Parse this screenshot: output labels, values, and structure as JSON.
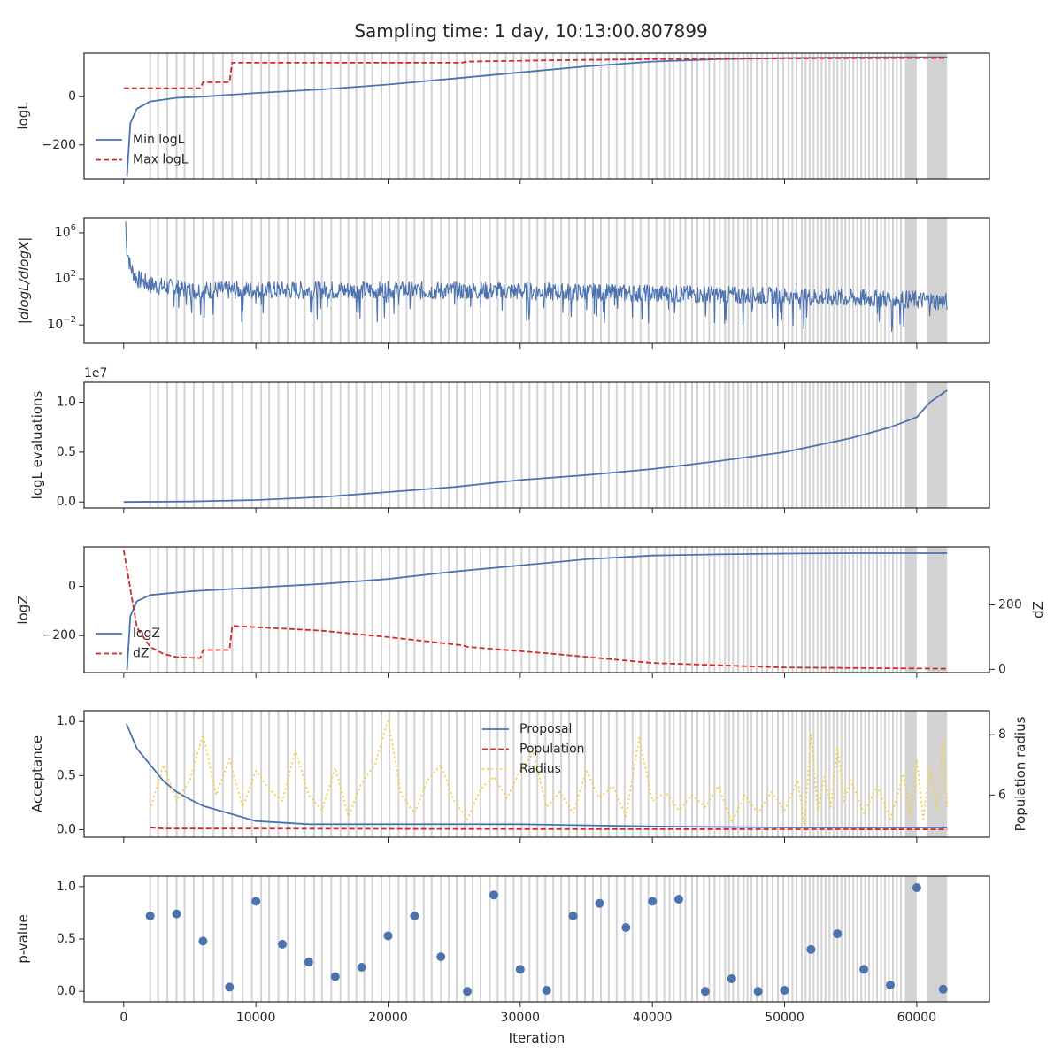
{
  "figure": {
    "title": "Sampling time: 1 day, 10:13:00.807899"
  },
  "colors": {
    "blue": "#4c72b0",
    "red": "#d62728",
    "yellow": "#f5d040",
    "gray_band": "#d3d3d3",
    "axis": "#262626"
  },
  "chart_data": [
    {
      "id": "logL",
      "type": "line",
      "ylabel": "logL",
      "ylim": [
        -340,
        180
      ],
      "yticks": [
        {
          "v": 0,
          "label": "0"
        },
        {
          "v": -200,
          "label": "−200"
        }
      ],
      "legend_position": "lower-left",
      "series": [
        {
          "name": "Min logL",
          "color": "blue",
          "style": "solid",
          "x": [
            250,
            500,
            1000,
            2000,
            4000,
            6000,
            10000,
            15000,
            20000,
            25000,
            30000,
            35000,
            40000,
            45000,
            50000,
            55000,
            60000,
            62300
          ],
          "y": [
            -330,
            -110,
            -50,
            -20,
            -5,
            0,
            15,
            30,
            50,
            75,
            100,
            125,
            145,
            155,
            160,
            162,
            163,
            163
          ]
        },
        {
          "name": "Max logL",
          "color": "red",
          "style": "dashed",
          "x": [
            0,
            5800,
            6000,
            8000,
            8200,
            25600,
            26000,
            32000,
            40000,
            50000,
            62300
          ],
          "y": [
            35,
            35,
            60,
            60,
            140,
            140,
            145,
            150,
            155,
            158,
            160
          ]
        }
      ]
    },
    {
      "id": "dlogL",
      "type": "line",
      "ylabel": "|dlogL/dlogX|",
      "yscale": "log",
      "yticks": [
        {
          "v": 1000000,
          "label": "10^6"
        },
        {
          "v": 100,
          "label": "10^2"
        },
        {
          "v": 0.01,
          "label": "10^−2"
        }
      ],
      "series": [
        {
          "name": "",
          "color": "blue",
          "style": "solid",
          "noise": true,
          "x": [
            150,
            200,
            500,
            1000,
            2000,
            5000,
            10000,
            20000,
            30000,
            40000,
            50000,
            60000,
            62300
          ],
          "y": [
            10000000,
            100000,
            1000,
            100,
            30,
            10,
            10,
            10,
            8,
            5,
            3,
            1.5,
            1
          ]
        }
      ]
    },
    {
      "id": "evals",
      "type": "line",
      "ylabel": "logL evaluations",
      "multiplier_label": "1e7",
      "ylim": [
        -0.06,
        1.2
      ],
      "yticks": [
        {
          "v": 0,
          "label": "0.0"
        },
        {
          "v": 0.5,
          "label": "0.5"
        },
        {
          "v": 1.0,
          "label": "1.0"
        }
      ],
      "series": [
        {
          "name": "",
          "color": "blue",
          "style": "solid",
          "x": [
            0,
            5000,
            10000,
            15000,
            20000,
            25000,
            30000,
            35000,
            40000,
            45000,
            50000,
            55000,
            58000,
            60000,
            61000,
            62300
          ],
          "y": [
            0,
            0.005,
            0.02,
            0.05,
            0.1,
            0.15,
            0.22,
            0.27,
            0.33,
            0.41,
            0.5,
            0.64,
            0.75,
            0.85,
            1.0,
            1.12
          ]
        }
      ]
    },
    {
      "id": "logZ",
      "type": "line",
      "ylabel": "logZ",
      "ylabel_right": "dZ",
      "ylim": [
        -350,
        160
      ],
      "yticks": [
        {
          "v": 0,
          "label": "0"
        },
        {
          "v": -200,
          "label": "−200"
        }
      ],
      "ylim_right": [
        -10,
        380
      ],
      "yticks_right": [
        {
          "v": 0,
          "label": "0"
        },
        {
          "v": 200,
          "label": "200"
        }
      ],
      "legend_position": "lower-left",
      "series": [
        {
          "name": "logZ",
          "color": "blue",
          "style": "solid",
          "axis": "left",
          "x": [
            250,
            500,
            1000,
            2000,
            5000,
            10000,
            15000,
            20000,
            25000,
            30000,
            35000,
            40000,
            45000,
            50000,
            55000,
            60000,
            62300
          ],
          "y": [
            -340,
            -120,
            -60,
            -35,
            -20,
            -5,
            10,
            30,
            60,
            85,
            110,
            125,
            130,
            133,
            135,
            135,
            135
          ]
        },
        {
          "name": "dZ",
          "color": "red",
          "style": "dashed",
          "axis": "right",
          "x": [
            0,
            1000,
            2000,
            3000,
            4000,
            5800,
            6000,
            8000,
            8200,
            15000,
            20000,
            25600,
            26000,
            32000,
            40000,
            50000,
            62300
          ],
          "y": [
            370,
            130,
            70,
            48,
            38,
            35,
            60,
            60,
            135,
            120,
            100,
            75,
            70,
            50,
            20,
            6,
            2
          ]
        }
      ]
    },
    {
      "id": "acceptance",
      "type": "line",
      "ylabel": "Acceptance",
      "ylabel_right": "Population radius",
      "ylim": [
        -0.07,
        1.1
      ],
      "yticks": [
        {
          "v": 0,
          "label": "0.0"
        },
        {
          "v": 0.5,
          "label": "0.5"
        },
        {
          "v": 1.0,
          "label": "1.0"
        }
      ],
      "ylim_right": [
        4.6,
        8.8
      ],
      "yticks_right": [
        {
          "v": 6,
          "label": "6"
        },
        {
          "v": 8,
          "label": "8"
        }
      ],
      "legend_position": "upper-center",
      "series": [
        {
          "name": "Proposal",
          "color": "blue",
          "style": "solid",
          "axis": "left",
          "x": [
            200,
            1000,
            2000,
            3000,
            4000,
            5000,
            6000,
            8000,
            10000,
            14000,
            20000,
            30000,
            40000,
            50000,
            62300
          ],
          "y": [
            0.98,
            0.75,
            0.6,
            0.45,
            0.35,
            0.28,
            0.22,
            0.15,
            0.08,
            0.05,
            0.05,
            0.05,
            0.03,
            0.02,
            0.02
          ]
        },
        {
          "name": "Population",
          "color": "red",
          "style": "dashed",
          "axis": "left",
          "x": [
            2000,
            3000,
            10000,
            30000,
            62300
          ],
          "y": [
            0.02,
            0.01,
            0.01,
            0.005,
            0.003
          ]
        },
        {
          "name": "Radius",
          "color": "yellow",
          "style": "dotted",
          "axis": "right",
          "x": [
            2000,
            3000,
            4000,
            5000,
            6000,
            7000,
            8000,
            9000,
            10000,
            11000,
            12000,
            13000,
            14000,
            15000,
            16000,
            17000,
            18000,
            19000,
            20000,
            21000,
            22000,
            23000,
            24000,
            25000,
            26000,
            27000,
            28000,
            29000,
            30000,
            31000,
            32000,
            33000,
            34000,
            35000,
            36000,
            37000,
            38000,
            39000,
            40000,
            41000,
            42000,
            43000,
            44000,
            45000,
            46000,
            47000,
            48000,
            49000,
            50000,
            51000,
            51500,
            52000,
            52500,
            53000,
            53500,
            54000,
            54500,
            55000,
            56000,
            57000,
            58000,
            59000,
            59500,
            60000,
            60500,
            61000,
            61500,
            62000,
            62300
          ],
          "y": [
            5.5,
            7.0,
            5.8,
            6.5,
            8.0,
            6.0,
            7.2,
            5.6,
            6.8,
            6.2,
            5.8,
            7.5,
            6.0,
            5.5,
            6.9,
            5.3,
            6.4,
            7.0,
            8.5,
            6.0,
            5.4,
            6.5,
            7.0,
            5.8,
            5.2,
            6.2,
            6.6,
            5.9,
            6.8,
            7.4,
            5.6,
            6.1,
            5.4,
            6.8,
            5.9,
            6.3,
            5.3,
            7.9,
            5.8,
            6.1,
            5.5,
            6.0,
            5.6,
            6.3,
            5.1,
            6.0,
            5.4,
            6.1,
            5.5,
            6.5,
            5.0,
            8.0,
            5.5,
            6.6,
            5.6,
            7.6,
            5.8,
            6.5,
            5.4,
            6.3,
            5.2,
            6.7,
            5.3,
            7.2,
            5.2,
            6.9,
            5.5,
            7.8,
            5.6
          ]
        }
      ]
    },
    {
      "id": "pvalue",
      "type": "scatter",
      "ylabel": "p-value",
      "xlabel": "Iteration",
      "ylim": [
        -0.1,
        1.1
      ],
      "yticks": [
        {
          "v": 0,
          "label": "0.0"
        },
        {
          "v": 0.5,
          "label": "0.5"
        },
        {
          "v": 1.0,
          "label": "1.0"
        }
      ],
      "series": [
        {
          "name": "",
          "color": "blue",
          "x": [
            2000,
            4000,
            6000,
            8000,
            10000,
            12000,
            14000,
            16000,
            18000,
            20000,
            22000,
            24000,
            26000,
            28000,
            30000,
            32000,
            34000,
            36000,
            38000,
            40000,
            42000,
            44000,
            46000,
            48000,
            50000,
            52000,
            54000,
            56000,
            58000,
            60000,
            62000
          ],
          "y": [
            0.72,
            0.74,
            0.48,
            0.04,
            0.86,
            0.45,
            0.28,
            0.14,
            0.23,
            0.53,
            0.72,
            0.33,
            0.0,
            0.92,
            0.21,
            0.01,
            0.72,
            0.84,
            0.61,
            0.86,
            0.88,
            0.0,
            0.12,
            0.0,
            0.01,
            0.4,
            0.55,
            0.21,
            0.06,
            0.99,
            0.02
          ]
        }
      ]
    }
  ],
  "shared_x": {
    "xlim": [
      -3000,
      65500
    ],
    "xticks": [
      {
        "v": 0,
        "label": "0"
      },
      {
        "v": 10000,
        "label": "10000"
      },
      {
        "v": 20000,
        "label": "20000"
      },
      {
        "v": 30000,
        "label": "30000"
      },
      {
        "v": 40000,
        "label": "40000"
      },
      {
        "v": 50000,
        "label": "50000"
      },
      {
        "v": 60000,
        "label": "60000"
      }
    ],
    "restart_iterations": [
      2000,
      2600,
      3300,
      4000,
      4600,
      5300,
      6000,
      6800,
      7500,
      8200,
      9000,
      9700,
      10400,
      11000,
      11700,
      12400,
      13000,
      13700,
      14400,
      15000,
      15700,
      16400,
      17000,
      17600,
      18200,
      18800,
      19500,
      20100,
      20800,
      21400,
      22000,
      22700,
      23300,
      24000,
      24600,
      25200,
      25800,
      26400,
      27000,
      27700,
      28300,
      28900,
      29500,
      30100,
      30700,
      31300,
      31900,
      32500,
      33100,
      33700,
      34300,
      34900,
      35500,
      36100,
      36700,
      37300,
      37900,
      38500,
      39100,
      39700,
      40300,
      40900,
      41300,
      41600,
      42100,
      42500,
      43000,
      43400,
      43900,
      44300,
      44700,
      45100,
      45500,
      45800,
      46100,
      46500,
      46900,
      47200,
      47500,
      47900,
      48300,
      48700,
      49100,
      49500,
      49900,
      50300,
      50600,
      50900,
      51300,
      51600,
      51900,
      52200,
      52500,
      52800,
      53100,
      53400,
      53700,
      54000,
      54300,
      54600,
      54900,
      55200,
      55500,
      55800,
      56100,
      56400,
      56700,
      57000,
      57300,
      57600,
      57900,
      58200,
      58500,
      58800
    ],
    "dense_bands": [
      [
        59100,
        60000
      ],
      [
        60800,
        62300
      ]
    ]
  }
}
